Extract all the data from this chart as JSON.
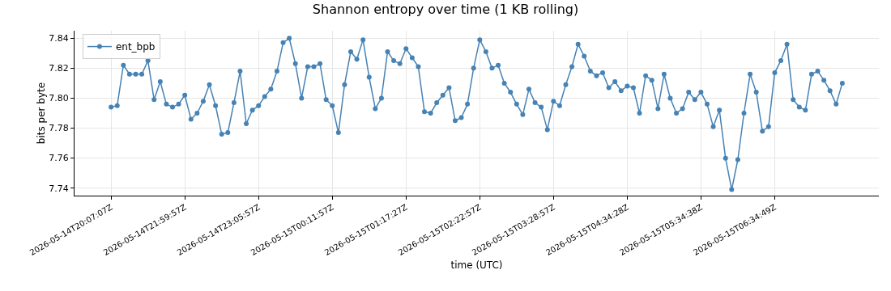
{
  "chart_data": {
    "type": "line",
    "title": "Shannon entropy over time (1 KB rolling)",
    "xlabel": "time (UTC)",
    "ylabel": "bits per byte",
    "categories": [
      "2026-05-14T20:07:07Z",
      null,
      null,
      null,
      null,
      null,
      null,
      null,
      null,
      null,
      null,
      null,
      "2026-05-14T21:59:57Z",
      null,
      null,
      null,
      null,
      null,
      null,
      null,
      null,
      null,
      null,
      null,
      "2026-05-14T23:05:57Z",
      null,
      null,
      null,
      null,
      null,
      null,
      null,
      null,
      null,
      null,
      null,
      "2026-05-15T00:11:57Z",
      null,
      null,
      null,
      null,
      null,
      null,
      null,
      null,
      null,
      null,
      null,
      "2026-05-15T01:17:27Z",
      null,
      null,
      null,
      null,
      null,
      null,
      null,
      null,
      null,
      null,
      null,
      "2026-05-15T02:22:57Z",
      null,
      null,
      null,
      null,
      null,
      null,
      null,
      null,
      null,
      null,
      null,
      "2026-05-15T03:28:57Z",
      null,
      null,
      null,
      null,
      null,
      null,
      null,
      null,
      null,
      null,
      null,
      "2026-05-15T04:34:28Z",
      null,
      null,
      null,
      null,
      null,
      null,
      null,
      null,
      null,
      null,
      null,
      "2026-05-15T05:34:38Z",
      null,
      null,
      null,
      null,
      null,
      null,
      null,
      null,
      null,
      null,
      null,
      "2026-05-15T06:34:49Z",
      null,
      null,
      null,
      null,
      null,
      null,
      null,
      null,
      null,
      null,
      null
    ],
    "series": [
      {
        "name": "ent_bpb",
        "color": "#4682b4",
        "values": [
          7.794,
          7.795,
          7.822,
          7.816,
          7.816,
          7.816,
          7.825,
          7.799,
          7.811,
          7.796,
          7.794,
          7.796,
          7.802,
          7.786,
          7.79,
          7.798,
          7.809,
          7.795,
          7.776,
          7.777,
          7.797,
          7.818,
          7.783,
          7.792,
          7.795,
          7.801,
          7.806,
          7.818,
          7.837,
          7.84,
          7.823,
          7.8,
          7.821,
          7.821,
          7.823,
          7.799,
          7.795,
          7.777,
          7.809,
          7.831,
          7.826,
          7.839,
          7.814,
          7.793,
          7.8,
          7.831,
          7.825,
          7.823,
          7.833,
          7.827,
          7.821,
          7.791,
          7.79,
          7.797,
          7.802,
          7.807,
          7.785,
          7.787,
          7.796,
          7.82,
          7.839,
          7.831,
          7.82,
          7.822,
          7.81,
          7.804,
          7.796,
          7.789,
          7.806,
          7.797,
          7.794,
          7.779,
          7.798,
          7.795,
          7.809,
          7.821,
          7.836,
          7.828,
          7.818,
          7.815,
          7.817,
          7.807,
          7.811,
          7.805,
          7.808,
          7.807,
          7.79,
          7.815,
          7.812,
          7.793,
          7.816,
          7.8,
          7.79,
          7.793,
          7.804,
          7.799,
          7.804,
          7.796,
          7.781,
          7.792,
          7.76,
          7.739,
          7.759,
          7.79,
          7.816,
          7.804,
          7.778,
          7.781,
          7.817,
          7.825,
          7.836,
          7.799,
          7.794,
          7.792,
          7.816,
          7.818,
          7.812,
          7.805,
          7.796,
          7.81
        ]
      }
    ],
    "ylim": [
      7.735,
      7.845
    ],
    "yticks": [
      7.74,
      7.76,
      7.78,
      {
        "value": 7.8,
        "label": "7.80"
      },
      7.82,
      7.84
    ],
    "grid": true,
    "legend": "top left",
    "marker": "circle",
    "line_style": "solid"
  }
}
